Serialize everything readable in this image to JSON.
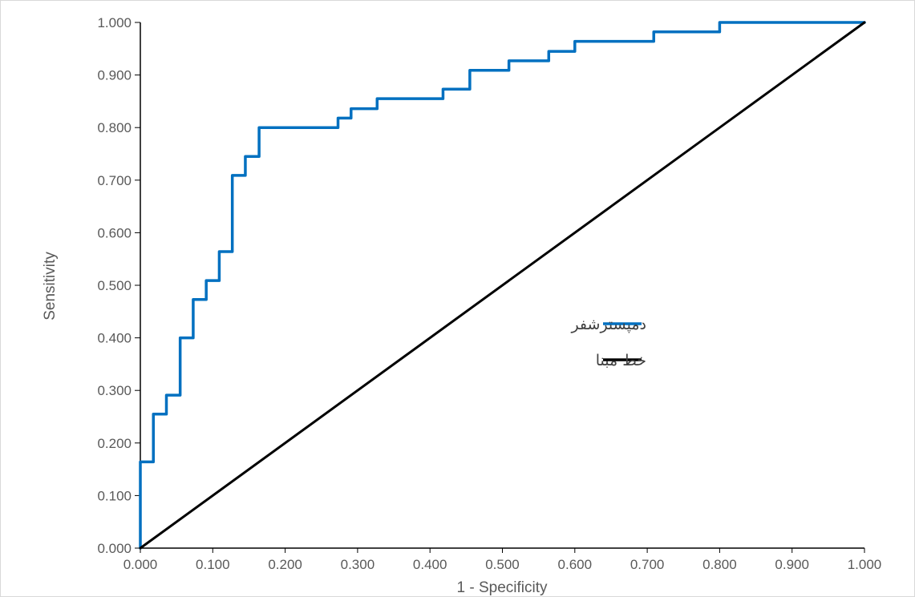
{
  "chart_data": {
    "type": "line",
    "title": "",
    "xlabel": "1 - Specificity",
    "ylabel": "Sensitivity",
    "xlim": [
      0,
      1
    ],
    "ylim": [
      0,
      1
    ],
    "x_ticks": [
      "0.000",
      "0.100",
      "0.200",
      "0.300",
      "0.400",
      "0.500",
      "0.600",
      "0.700",
      "0.800",
      "0.900",
      "1.000"
    ],
    "y_ticks": [
      "0.000",
      "0.100",
      "0.200",
      "0.300",
      "0.400",
      "0.500",
      "0.600",
      "0.700",
      "0.800",
      "0.900",
      "1.000"
    ],
    "grid": false,
    "legend_position": "right-middle",
    "series": [
      {
        "name": "دمپسترشفر",
        "color": "#0070C0",
        "points": [
          [
            0.0,
            0.0
          ],
          [
            0.0,
            0.164
          ],
          [
            0.018,
            0.164
          ],
          [
            0.018,
            0.255
          ],
          [
            0.036,
            0.255
          ],
          [
            0.036,
            0.291
          ],
          [
            0.055,
            0.291
          ],
          [
            0.055,
            0.4
          ],
          [
            0.073,
            0.4
          ],
          [
            0.073,
            0.473
          ],
          [
            0.091,
            0.473
          ],
          [
            0.091,
            0.509
          ],
          [
            0.109,
            0.509
          ],
          [
            0.109,
            0.564
          ],
          [
            0.127,
            0.564
          ],
          [
            0.127,
            0.709
          ],
          [
            0.145,
            0.709
          ],
          [
            0.145,
            0.745
          ],
          [
            0.164,
            0.745
          ],
          [
            0.164,
            0.8
          ],
          [
            0.273,
            0.8
          ],
          [
            0.273,
            0.818
          ],
          [
            0.291,
            0.818
          ],
          [
            0.291,
            0.836
          ],
          [
            0.327,
            0.836
          ],
          [
            0.327,
            0.855
          ],
          [
            0.418,
            0.855
          ],
          [
            0.418,
            0.873
          ],
          [
            0.455,
            0.873
          ],
          [
            0.455,
            0.909
          ],
          [
            0.509,
            0.909
          ],
          [
            0.509,
            0.927
          ],
          [
            0.564,
            0.927
          ],
          [
            0.564,
            0.945
          ],
          [
            0.6,
            0.945
          ],
          [
            0.6,
            0.964
          ],
          [
            0.709,
            0.964
          ],
          [
            0.709,
            0.982
          ],
          [
            0.8,
            0.982
          ],
          [
            0.8,
            1.0
          ],
          [
            1.0,
            1.0
          ]
        ]
      },
      {
        "name": "خط مبنا",
        "color": "#000000",
        "points": [
          [
            0.0,
            0.0
          ],
          [
            1.0,
            1.0
          ]
        ]
      }
    ]
  }
}
